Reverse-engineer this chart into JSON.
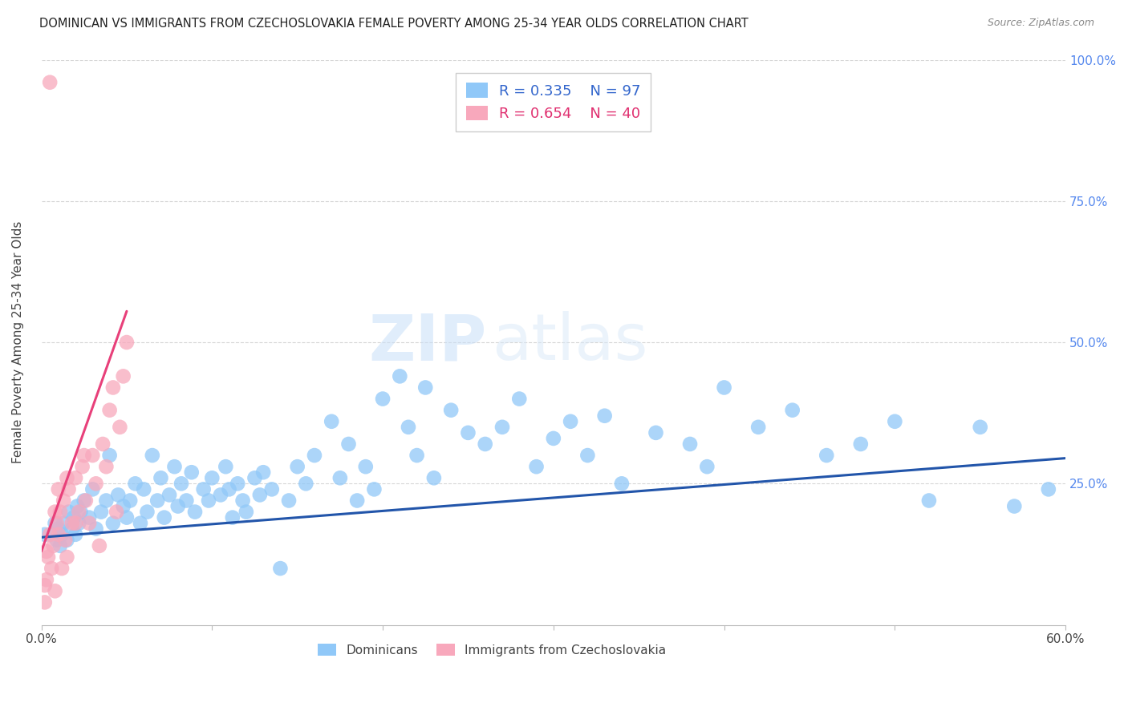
{
  "title": "DOMINICAN VS IMMIGRANTS FROM CZECHOSLOVAKIA FEMALE POVERTY AMONG 25-34 YEAR OLDS CORRELATION CHART",
  "source": "Source: ZipAtlas.com",
  "ylabel": "Female Poverty Among 25-34 Year Olds",
  "xlim": [
    0.0,
    0.6
  ],
  "ylim": [
    0.0,
    1.0
  ],
  "x_ticks": [
    0.0,
    0.1,
    0.2,
    0.3,
    0.4,
    0.5,
    0.6
  ],
  "x_tick_labels": [
    "0.0%",
    "",
    "",
    "",
    "",
    "",
    "60.0%"
  ],
  "y_ticks_right": [
    0.25,
    0.5,
    0.75,
    1.0
  ],
  "y_tick_labels_right": [
    "25.0%",
    "50.0%",
    "75.0%",
    "100.0%"
  ],
  "watermark_zip": "ZIP",
  "watermark_atlas": "atlas",
  "color_blue": "#90c8f8",
  "color_pink": "#f8a8bc",
  "line_blue": "#2255aa",
  "line_pink": "#e8407a",
  "R_blue": 0.335,
  "N_blue": 97,
  "R_pink": 0.654,
  "N_pink": 40,
  "blue_line_y0": 0.155,
  "blue_line_y1": 0.295,
  "pink_line_slope": 8.5,
  "pink_line_intercept": 0.13,
  "dominican_x": [
    0.002,
    0.008,
    0.009,
    0.01,
    0.011,
    0.012,
    0.013,
    0.015,
    0.016,
    0.018,
    0.019,
    0.02,
    0.021,
    0.022,
    0.023,
    0.025,
    0.028,
    0.03,
    0.032,
    0.035,
    0.038,
    0.04,
    0.042,
    0.045,
    0.048,
    0.05,
    0.052,
    0.055,
    0.058,
    0.06,
    0.062,
    0.065,
    0.068,
    0.07,
    0.072,
    0.075,
    0.078,
    0.08,
    0.082,
    0.085,
    0.088,
    0.09,
    0.095,
    0.098,
    0.1,
    0.105,
    0.108,
    0.11,
    0.112,
    0.115,
    0.118,
    0.12,
    0.125,
    0.128,
    0.13,
    0.135,
    0.14,
    0.145,
    0.15,
    0.155,
    0.16,
    0.17,
    0.175,
    0.18,
    0.185,
    0.19,
    0.195,
    0.2,
    0.21,
    0.215,
    0.22,
    0.225,
    0.23,
    0.24,
    0.25,
    0.26,
    0.27,
    0.28,
    0.29,
    0.3,
    0.31,
    0.32,
    0.33,
    0.34,
    0.36,
    0.38,
    0.39,
    0.4,
    0.42,
    0.44,
    0.46,
    0.48,
    0.5,
    0.52,
    0.55,
    0.57,
    0.59
  ],
  "dominican_y": [
    0.16,
    0.18,
    0.15,
    0.17,
    0.14,
    0.16,
    0.18,
    0.15,
    0.2,
    0.17,
    0.19,
    0.16,
    0.21,
    0.18,
    0.2,
    0.22,
    0.19,
    0.24,
    0.17,
    0.2,
    0.22,
    0.3,
    0.18,
    0.23,
    0.21,
    0.19,
    0.22,
    0.25,
    0.18,
    0.24,
    0.2,
    0.3,
    0.22,
    0.26,
    0.19,
    0.23,
    0.28,
    0.21,
    0.25,
    0.22,
    0.27,
    0.2,
    0.24,
    0.22,
    0.26,
    0.23,
    0.28,
    0.24,
    0.19,
    0.25,
    0.22,
    0.2,
    0.26,
    0.23,
    0.27,
    0.24,
    0.1,
    0.22,
    0.28,
    0.25,
    0.3,
    0.36,
    0.26,
    0.32,
    0.22,
    0.28,
    0.24,
    0.4,
    0.44,
    0.35,
    0.3,
    0.42,
    0.26,
    0.38,
    0.34,
    0.32,
    0.35,
    0.4,
    0.28,
    0.33,
    0.36,
    0.3,
    0.37,
    0.25,
    0.34,
    0.32,
    0.28,
    0.42,
    0.35,
    0.38,
    0.3,
    0.32,
    0.36,
    0.22,
    0.35,
    0.21,
    0.24
  ],
  "czech_x": [
    0.002,
    0.003,
    0.004,
    0.005,
    0.006,
    0.007,
    0.008,
    0.009,
    0.01,
    0.011,
    0.012,
    0.013,
    0.014,
    0.015,
    0.016,
    0.018,
    0.02,
    0.022,
    0.024,
    0.026,
    0.028,
    0.03,
    0.032,
    0.034,
    0.036,
    0.038,
    0.04,
    0.042,
    0.044,
    0.046,
    0.048,
    0.05,
    0.002,
    0.003,
    0.005,
    0.008,
    0.01,
    0.015,
    0.02,
    0.025
  ],
  "czech_y": [
    0.04,
    0.08,
    0.12,
    0.96,
    0.1,
    0.14,
    0.06,
    0.18,
    0.16,
    0.2,
    0.1,
    0.22,
    0.15,
    0.12,
    0.24,
    0.18,
    0.26,
    0.2,
    0.28,
    0.22,
    0.18,
    0.3,
    0.25,
    0.14,
    0.32,
    0.28,
    0.38,
    0.42,
    0.2,
    0.35,
    0.44,
    0.5,
    0.07,
    0.13,
    0.16,
    0.2,
    0.24,
    0.26,
    0.18,
    0.3
  ]
}
